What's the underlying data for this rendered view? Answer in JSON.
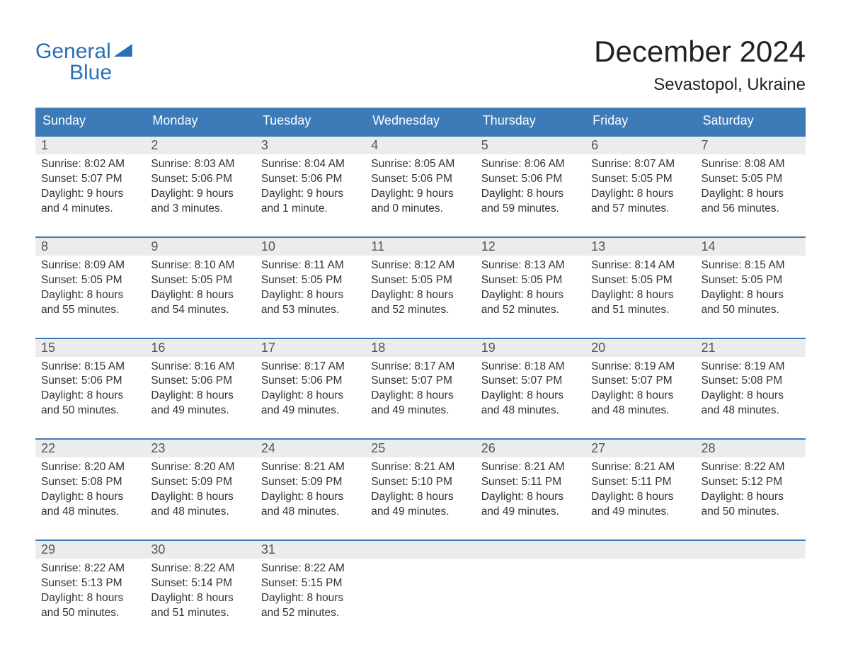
{
  "brand": {
    "line1": "General",
    "line2": "Blue",
    "color": "#2a6fb5"
  },
  "title": "December 2024",
  "location": "Sevastopol, Ukraine",
  "colors": {
    "header_bg": "#3d7ab8",
    "header_text": "#ffffff",
    "week_border": "#3d7ab8",
    "datenum_bg": "#ececec",
    "body_text": "#333333",
    "page_bg": "#ffffff"
  },
  "day_headers": [
    "Sunday",
    "Monday",
    "Tuesday",
    "Wednesday",
    "Thursday",
    "Friday",
    "Saturday"
  ],
  "weeks": [
    [
      {
        "n": "1",
        "sunrise": "8:02 AM",
        "sunset": "5:07 PM",
        "dl1": "9 hours",
        "dl2": "and 4 minutes."
      },
      {
        "n": "2",
        "sunrise": "8:03 AM",
        "sunset": "5:06 PM",
        "dl1": "9 hours",
        "dl2": "and 3 minutes."
      },
      {
        "n": "3",
        "sunrise": "8:04 AM",
        "sunset": "5:06 PM",
        "dl1": "9 hours",
        "dl2": "and 1 minute."
      },
      {
        "n": "4",
        "sunrise": "8:05 AM",
        "sunset": "5:06 PM",
        "dl1": "9 hours",
        "dl2": "and 0 minutes."
      },
      {
        "n": "5",
        "sunrise": "8:06 AM",
        "sunset": "5:06 PM",
        "dl1": "8 hours",
        "dl2": "and 59 minutes."
      },
      {
        "n": "6",
        "sunrise": "8:07 AM",
        "sunset": "5:05 PM",
        "dl1": "8 hours",
        "dl2": "and 57 minutes."
      },
      {
        "n": "7",
        "sunrise": "8:08 AM",
        "sunset": "5:05 PM",
        "dl1": "8 hours",
        "dl2": "and 56 minutes."
      }
    ],
    [
      {
        "n": "8",
        "sunrise": "8:09 AM",
        "sunset": "5:05 PM",
        "dl1": "8 hours",
        "dl2": "and 55 minutes."
      },
      {
        "n": "9",
        "sunrise": "8:10 AM",
        "sunset": "5:05 PM",
        "dl1": "8 hours",
        "dl2": "and 54 minutes."
      },
      {
        "n": "10",
        "sunrise": "8:11 AM",
        "sunset": "5:05 PM",
        "dl1": "8 hours",
        "dl2": "and 53 minutes."
      },
      {
        "n": "11",
        "sunrise": "8:12 AM",
        "sunset": "5:05 PM",
        "dl1": "8 hours",
        "dl2": "and 52 minutes."
      },
      {
        "n": "12",
        "sunrise": "8:13 AM",
        "sunset": "5:05 PM",
        "dl1": "8 hours",
        "dl2": "and 52 minutes."
      },
      {
        "n": "13",
        "sunrise": "8:14 AM",
        "sunset": "5:05 PM",
        "dl1": "8 hours",
        "dl2": "and 51 minutes."
      },
      {
        "n": "14",
        "sunrise": "8:15 AM",
        "sunset": "5:05 PM",
        "dl1": "8 hours",
        "dl2": "and 50 minutes."
      }
    ],
    [
      {
        "n": "15",
        "sunrise": "8:15 AM",
        "sunset": "5:06 PM",
        "dl1": "8 hours",
        "dl2": "and 50 minutes."
      },
      {
        "n": "16",
        "sunrise": "8:16 AM",
        "sunset": "5:06 PM",
        "dl1": "8 hours",
        "dl2": "and 49 minutes."
      },
      {
        "n": "17",
        "sunrise": "8:17 AM",
        "sunset": "5:06 PM",
        "dl1": "8 hours",
        "dl2": "and 49 minutes."
      },
      {
        "n": "18",
        "sunrise": "8:17 AM",
        "sunset": "5:07 PM",
        "dl1": "8 hours",
        "dl2": "and 49 minutes."
      },
      {
        "n": "19",
        "sunrise": "8:18 AM",
        "sunset": "5:07 PM",
        "dl1": "8 hours",
        "dl2": "and 48 minutes."
      },
      {
        "n": "20",
        "sunrise": "8:19 AM",
        "sunset": "5:07 PM",
        "dl1": "8 hours",
        "dl2": "and 48 minutes."
      },
      {
        "n": "21",
        "sunrise": "8:19 AM",
        "sunset": "5:08 PM",
        "dl1": "8 hours",
        "dl2": "and 48 minutes."
      }
    ],
    [
      {
        "n": "22",
        "sunrise": "8:20 AM",
        "sunset": "5:08 PM",
        "dl1": "8 hours",
        "dl2": "and 48 minutes."
      },
      {
        "n": "23",
        "sunrise": "8:20 AM",
        "sunset": "5:09 PM",
        "dl1": "8 hours",
        "dl2": "and 48 minutes."
      },
      {
        "n": "24",
        "sunrise": "8:21 AM",
        "sunset": "5:09 PM",
        "dl1": "8 hours",
        "dl2": "and 48 minutes."
      },
      {
        "n": "25",
        "sunrise": "8:21 AM",
        "sunset": "5:10 PM",
        "dl1": "8 hours",
        "dl2": "and 49 minutes."
      },
      {
        "n": "26",
        "sunrise": "8:21 AM",
        "sunset": "5:11 PM",
        "dl1": "8 hours",
        "dl2": "and 49 minutes."
      },
      {
        "n": "27",
        "sunrise": "8:21 AM",
        "sunset": "5:11 PM",
        "dl1": "8 hours",
        "dl2": "and 49 minutes."
      },
      {
        "n": "28",
        "sunrise": "8:22 AM",
        "sunset": "5:12 PM",
        "dl1": "8 hours",
        "dl2": "and 50 minutes."
      }
    ],
    [
      {
        "n": "29",
        "sunrise": "8:22 AM",
        "sunset": "5:13 PM",
        "dl1": "8 hours",
        "dl2": "and 50 minutes."
      },
      {
        "n": "30",
        "sunrise": "8:22 AM",
        "sunset": "5:14 PM",
        "dl1": "8 hours",
        "dl2": "and 51 minutes."
      },
      {
        "n": "31",
        "sunrise": "8:22 AM",
        "sunset": "5:15 PM",
        "dl1": "8 hours",
        "dl2": "and 52 minutes."
      },
      null,
      null,
      null,
      null
    ]
  ],
  "labels": {
    "sunrise_prefix": "Sunrise: ",
    "sunset_prefix": "Sunset: ",
    "daylight_prefix": "Daylight: "
  }
}
